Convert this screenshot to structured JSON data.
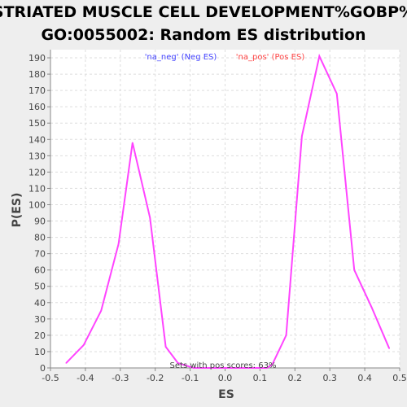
{
  "chart_data": {
    "type": "line",
    "title": "STRIATED MUSCLE CELL DEVELOPMENT%GOBP%",
    "subtitle": "GO:0055002: Random ES distribution",
    "xlabel": "ES",
    "ylabel": "P(ES)",
    "xlim": [
      -0.5,
      0.5
    ],
    "ylim": [
      0,
      195
    ],
    "x_ticks": [
      "-0.5",
      "-0.4",
      "-0.3",
      "-0.2",
      "-0.1",
      "0.0",
      "0.1",
      "0.2",
      "0.3",
      "0.4",
      "0.5"
    ],
    "y_ticks": [
      "0",
      "10",
      "20",
      "30",
      "40",
      "50",
      "60",
      "70",
      "80",
      "90",
      "100",
      "110",
      "120",
      "130",
      "140",
      "150",
      "160",
      "170",
      "180",
      "190"
    ],
    "grid": true,
    "legend": [
      {
        "label": "'na_neg' (Neg ES)",
        "color": "#4444ff"
      },
      {
        "label": "'na_pos' (Pos ES)",
        "color": "#ff4444"
      }
    ],
    "series": [
      {
        "color": "#ff44ff",
        "points": [
          [
            -0.455,
            3
          ],
          [
            -0.405,
            14
          ],
          [
            -0.355,
            35
          ],
          [
            -0.305,
            76
          ],
          [
            -0.265,
            138
          ],
          [
            -0.215,
            92
          ],
          [
            -0.17,
            13
          ],
          [
            -0.135,
            3
          ],
          [
            -0.09,
            0
          ],
          [
            0.12,
            0
          ],
          [
            0.135,
            2
          ],
          [
            0.175,
            20
          ],
          [
            0.22,
            142
          ],
          [
            0.27,
            191
          ],
          [
            0.32,
            168
          ],
          [
            0.37,
            60
          ],
          [
            0.42,
            37
          ],
          [
            0.47,
            12
          ]
        ]
      }
    ],
    "annotation": "Sets with pos scores: 63%"
  },
  "colors": {
    "background": "#eeeeee",
    "plot_background": "#ffffff",
    "grid": "#dddddd",
    "line": "#ff44ff"
  }
}
